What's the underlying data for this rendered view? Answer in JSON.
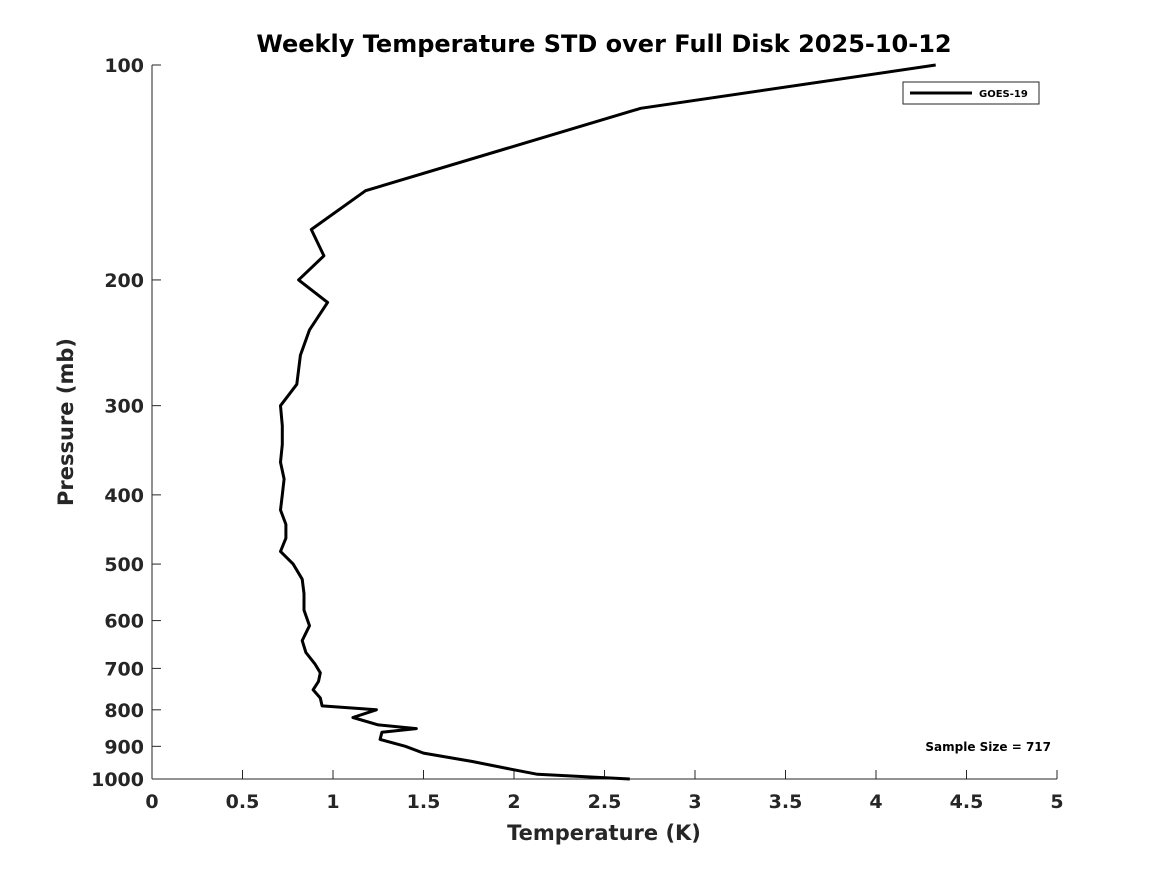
{
  "chart_data": {
    "type": "line",
    "title": "Weekly Temperature STD over Full Disk 2025-10-12",
    "xlabel": "Temperature (K)",
    "ylabel": "Pressure (mb)",
    "xlim": [
      0,
      5
    ],
    "ylim": [
      1000,
      100
    ],
    "yscale": "log",
    "grid": false,
    "legend_position": "top-right",
    "x_ticks": [
      0,
      0.5,
      1,
      1.5,
      2,
      2.5,
      3,
      3.5,
      4,
      4.5,
      5
    ],
    "x_tick_labels": [
      "0",
      "0.5",
      "1",
      "1.5",
      "2",
      "2.5",
      "3",
      "3.5",
      "4",
      "4.5",
      "5"
    ],
    "y_ticks": [
      100,
      200,
      300,
      400,
      500,
      600,
      700,
      800,
      900,
      1000
    ],
    "y_tick_labels": [
      "100",
      "200",
      "300",
      "400",
      "500",
      "600",
      "700",
      "800",
      "900",
      "1000"
    ],
    "annotation": "Sample Size = 717",
    "series": [
      {
        "name": "GOES-19",
        "color": "#000000",
        "x": [
          4.33,
          2.7,
          1.18,
          0.88,
          0.95,
          0.81,
          0.97,
          0.87,
          0.82,
          0.8,
          0.71,
          0.72,
          0.72,
          0.71,
          0.73,
          0.72,
          0.71,
          0.74,
          0.74,
          0.71,
          0.78,
          0.83,
          0.84,
          0.84,
          0.87,
          0.83,
          0.85,
          0.9,
          0.93,
          0.92,
          0.89,
          0.93,
          0.94,
          1.24,
          1.11,
          1.25,
          1.46,
          1.27,
          1.26,
          1.4,
          1.5,
          1.77,
          1.95,
          2.13,
          2.64
        ],
        "y": [
          100,
          115,
          150,
          170,
          185,
          200,
          215,
          235,
          255,
          280,
          300,
          320,
          340,
          360,
          380,
          400,
          420,
          440,
          460,
          480,
          500,
          525,
          550,
          580,
          610,
          640,
          665,
          690,
          710,
          730,
          750,
          770,
          790,
          800,
          820,
          840,
          850,
          860,
          880,
          900,
          920,
          945,
          965,
          985,
          1000
        ]
      }
    ]
  }
}
